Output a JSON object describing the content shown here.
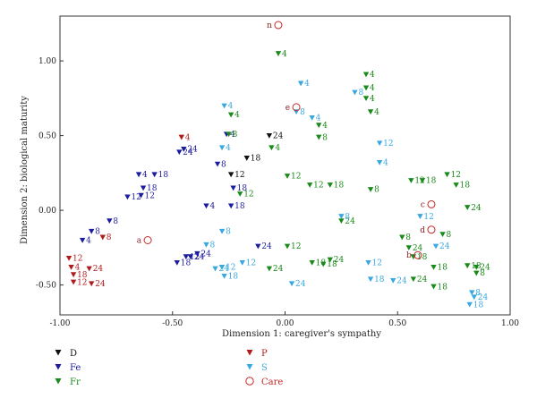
{
  "chart_data": {
    "type": "scatter",
    "title": "",
    "xlabel": "Dimension 1: caregiver's sympathy",
    "ylabel": "Dimension 2: biological maturity",
    "xlim": [
      -1.0,
      1.0
    ],
    "ylim": [
      -0.7,
      1.3
    ],
    "xticks": [
      "-1.00",
      "-0.50",
      "0.00",
      "0.50",
      "1.00"
    ],
    "yticks": [
      "-0.50",
      "0.00",
      "0.50",
      "1.00"
    ],
    "grid": false,
    "legend_position": "bottom-left",
    "series": [
      {
        "name": "D",
        "color": "#111111",
        "marker": "triangle-down",
        "points": [
          {
            "x": -0.07,
            "y": 0.5,
            "label": "24"
          },
          {
            "x": -0.24,
            "y": 0.24,
            "label": "12"
          },
          {
            "x": -0.17,
            "y": 0.35,
            "label": "18"
          }
        ]
      },
      {
        "name": "Fe",
        "color": "#1c1c9e",
        "marker": "triangle-down",
        "points": [
          {
            "x": -0.9,
            "y": -0.2,
            "label": "4"
          },
          {
            "x": -0.86,
            "y": -0.14,
            "label": "8"
          },
          {
            "x": -0.78,
            "y": -0.07,
            "label": "8"
          },
          {
            "x": -0.7,
            "y": 0.09,
            "label": "12"
          },
          {
            "x": -0.64,
            "y": 0.1,
            "label": "12"
          },
          {
            "x": -0.65,
            "y": 0.24,
            "label": "4"
          },
          {
            "x": -0.63,
            "y": 0.15,
            "label": "18"
          },
          {
            "x": -0.58,
            "y": 0.24,
            "label": "18"
          },
          {
            "x": -0.47,
            "y": 0.39,
            "label": "24"
          },
          {
            "x": -0.45,
            "y": 0.41,
            "label": "24"
          },
          {
            "x": -0.48,
            "y": -0.35,
            "label": "18"
          },
          {
            "x": -0.44,
            "y": -0.31,
            "label": "12"
          },
          {
            "x": -0.42,
            "y": -0.31,
            "label": "24"
          },
          {
            "x": -0.39,
            "y": -0.29,
            "label": "24"
          },
          {
            "x": -0.3,
            "y": 0.31,
            "label": "8"
          },
          {
            "x": -0.35,
            "y": 0.03,
            "label": "4"
          },
          {
            "x": -0.26,
            "y": 0.51,
            "label": "4"
          },
          {
            "x": -0.23,
            "y": 0.15,
            "label": "18"
          },
          {
            "x": -0.24,
            "y": 0.03,
            "label": "18"
          },
          {
            "x": -0.12,
            "y": -0.24,
            "label": "24"
          }
        ]
      },
      {
        "name": "Fr",
        "color": "#1a8a1a",
        "marker": "triangle-down",
        "points": [
          {
            "x": -0.03,
            "y": 1.05,
            "label": "4"
          },
          {
            "x": -0.24,
            "y": 0.64,
            "label": "4"
          },
          {
            "x": -0.25,
            "y": 0.51,
            "label": "8"
          },
          {
            "x": -0.2,
            "y": 0.11,
            "label": "12"
          },
          {
            "x": -0.06,
            "y": 0.42,
            "label": "4"
          },
          {
            "x": -0.07,
            "y": -0.39,
            "label": "24"
          },
          {
            "x": 0.01,
            "y": 0.23,
            "label": "12"
          },
          {
            "x": 0.01,
            "y": -0.24,
            "label": "12"
          },
          {
            "x": 0.11,
            "y": 0.17,
            "label": "12"
          },
          {
            "x": 0.12,
            "y": -0.35,
            "label": "18"
          },
          {
            "x": 0.15,
            "y": 0.57,
            "label": "4"
          },
          {
            "x": 0.15,
            "y": 0.49,
            "label": "8"
          },
          {
            "x": 0.17,
            "y": -0.36,
            "label": "18"
          },
          {
            "x": 0.2,
            "y": -0.33,
            "label": "24"
          },
          {
            "x": 0.2,
            "y": 0.17,
            "label": "18"
          },
          {
            "x": 0.25,
            "y": -0.07,
            "label": "24"
          },
          {
            "x": 0.36,
            "y": 0.82,
            "label": "4"
          },
          {
            "x": 0.36,
            "y": 0.75,
            "label": "4"
          },
          {
            "x": 0.36,
            "y": 0.91,
            "label": "4"
          },
          {
            "x": 0.38,
            "y": 0.66,
            "label": "4"
          },
          {
            "x": 0.38,
            "y": 0.14,
            "label": "8"
          },
          {
            "x": 0.52,
            "y": -0.18,
            "label": "8"
          },
          {
            "x": 0.55,
            "y": -0.25,
            "label": "24"
          },
          {
            "x": 0.56,
            "y": 0.2,
            "label": "12"
          },
          {
            "x": 0.57,
            "y": -0.46,
            "label": "24"
          },
          {
            "x": 0.57,
            "y": -0.31,
            "label": "18"
          },
          {
            "x": 0.61,
            "y": 0.2,
            "label": "18"
          },
          {
            "x": 0.66,
            "y": -0.38,
            "label": "18"
          },
          {
            "x": 0.66,
            "y": -0.51,
            "label": "18"
          },
          {
            "x": 0.7,
            "y": -0.16,
            "label": "8"
          },
          {
            "x": 0.72,
            "y": 0.24,
            "label": "12"
          },
          {
            "x": 0.76,
            "y": 0.17,
            "label": "18"
          },
          {
            "x": 0.81,
            "y": 0.02,
            "label": "24"
          },
          {
            "x": 0.81,
            "y": -0.37,
            "label": "18"
          },
          {
            "x": 0.85,
            "y": -0.38,
            "label": "24"
          },
          {
            "x": 0.85,
            "y": -0.42,
            "label": "8"
          }
        ]
      },
      {
        "name": "P",
        "color": "#b01c1c",
        "marker": "triangle-down",
        "points": [
          {
            "x": -0.96,
            "y": -0.32,
            "label": "12"
          },
          {
            "x": -0.95,
            "y": -0.38,
            "label": "4"
          },
          {
            "x": -0.94,
            "y": -0.43,
            "label": "18"
          },
          {
            "x": -0.87,
            "y": -0.39,
            "label": "24"
          },
          {
            "x": -0.94,
            "y": -0.48,
            "label": "12"
          },
          {
            "x": -0.86,
            "y": -0.49,
            "label": "24"
          },
          {
            "x": -0.81,
            "y": -0.18,
            "label": "8"
          },
          {
            "x": -0.46,
            "y": 0.49,
            "label": "4"
          }
        ]
      },
      {
        "name": "S",
        "color": "#3aa8e0",
        "marker": "triangle-down",
        "points": [
          {
            "x": 0.07,
            "y": 0.85,
            "label": "4"
          },
          {
            "x": -0.27,
            "y": 0.7,
            "label": "4"
          },
          {
            "x": -0.28,
            "y": 0.42,
            "label": "4"
          },
          {
            "x": 0.05,
            "y": 0.66,
            "label": "8"
          },
          {
            "x": 0.12,
            "y": 0.62,
            "label": "4"
          },
          {
            "x": 0.31,
            "y": 0.79,
            "label": "8"
          },
          {
            "x": -0.28,
            "y": -0.14,
            "label": "8"
          },
          {
            "x": -0.35,
            "y": -0.23,
            "label": "8"
          },
          {
            "x": -0.31,
            "y": -0.39,
            "label": "24"
          },
          {
            "x": -0.27,
            "y": -0.44,
            "label": "18"
          },
          {
            "x": -0.28,
            "y": -0.38,
            "label": "12"
          },
          {
            "x": -0.19,
            "y": -0.35,
            "label": "12"
          },
          {
            "x": 0.03,
            "y": -0.49,
            "label": "24"
          },
          {
            "x": 0.42,
            "y": 0.45,
            "label": "12"
          },
          {
            "x": 0.42,
            "y": 0.32,
            "label": "4"
          },
          {
            "x": 0.25,
            "y": -0.04,
            "label": "8"
          },
          {
            "x": 0.37,
            "y": -0.35,
            "label": "12"
          },
          {
            "x": 0.38,
            "y": -0.46,
            "label": "18"
          },
          {
            "x": 0.48,
            "y": -0.47,
            "label": "24"
          },
          {
            "x": 0.6,
            "y": -0.04,
            "label": "12"
          },
          {
            "x": 0.67,
            "y": -0.24,
            "label": "24"
          },
          {
            "x": 0.83,
            "y": -0.55,
            "label": "8"
          },
          {
            "x": 0.84,
            "y": -0.58,
            "label": "24"
          },
          {
            "x": 0.82,
            "y": -0.63,
            "label": "18"
          }
        ]
      },
      {
        "name": "Care",
        "color": "#c62828",
        "marker": "circle-open",
        "points": [
          {
            "x": -0.03,
            "y": 1.24,
            "label": "n"
          },
          {
            "x": 0.05,
            "y": 0.69,
            "label": "e"
          },
          {
            "x": -0.61,
            "y": -0.2,
            "label": "a"
          },
          {
            "x": 0.59,
            "y": -0.3,
            "label": "b"
          },
          {
            "x": 0.65,
            "y": 0.04,
            "label": "c"
          },
          {
            "x": 0.65,
            "y": -0.13,
            "label": "d"
          }
        ]
      }
    ]
  }
}
